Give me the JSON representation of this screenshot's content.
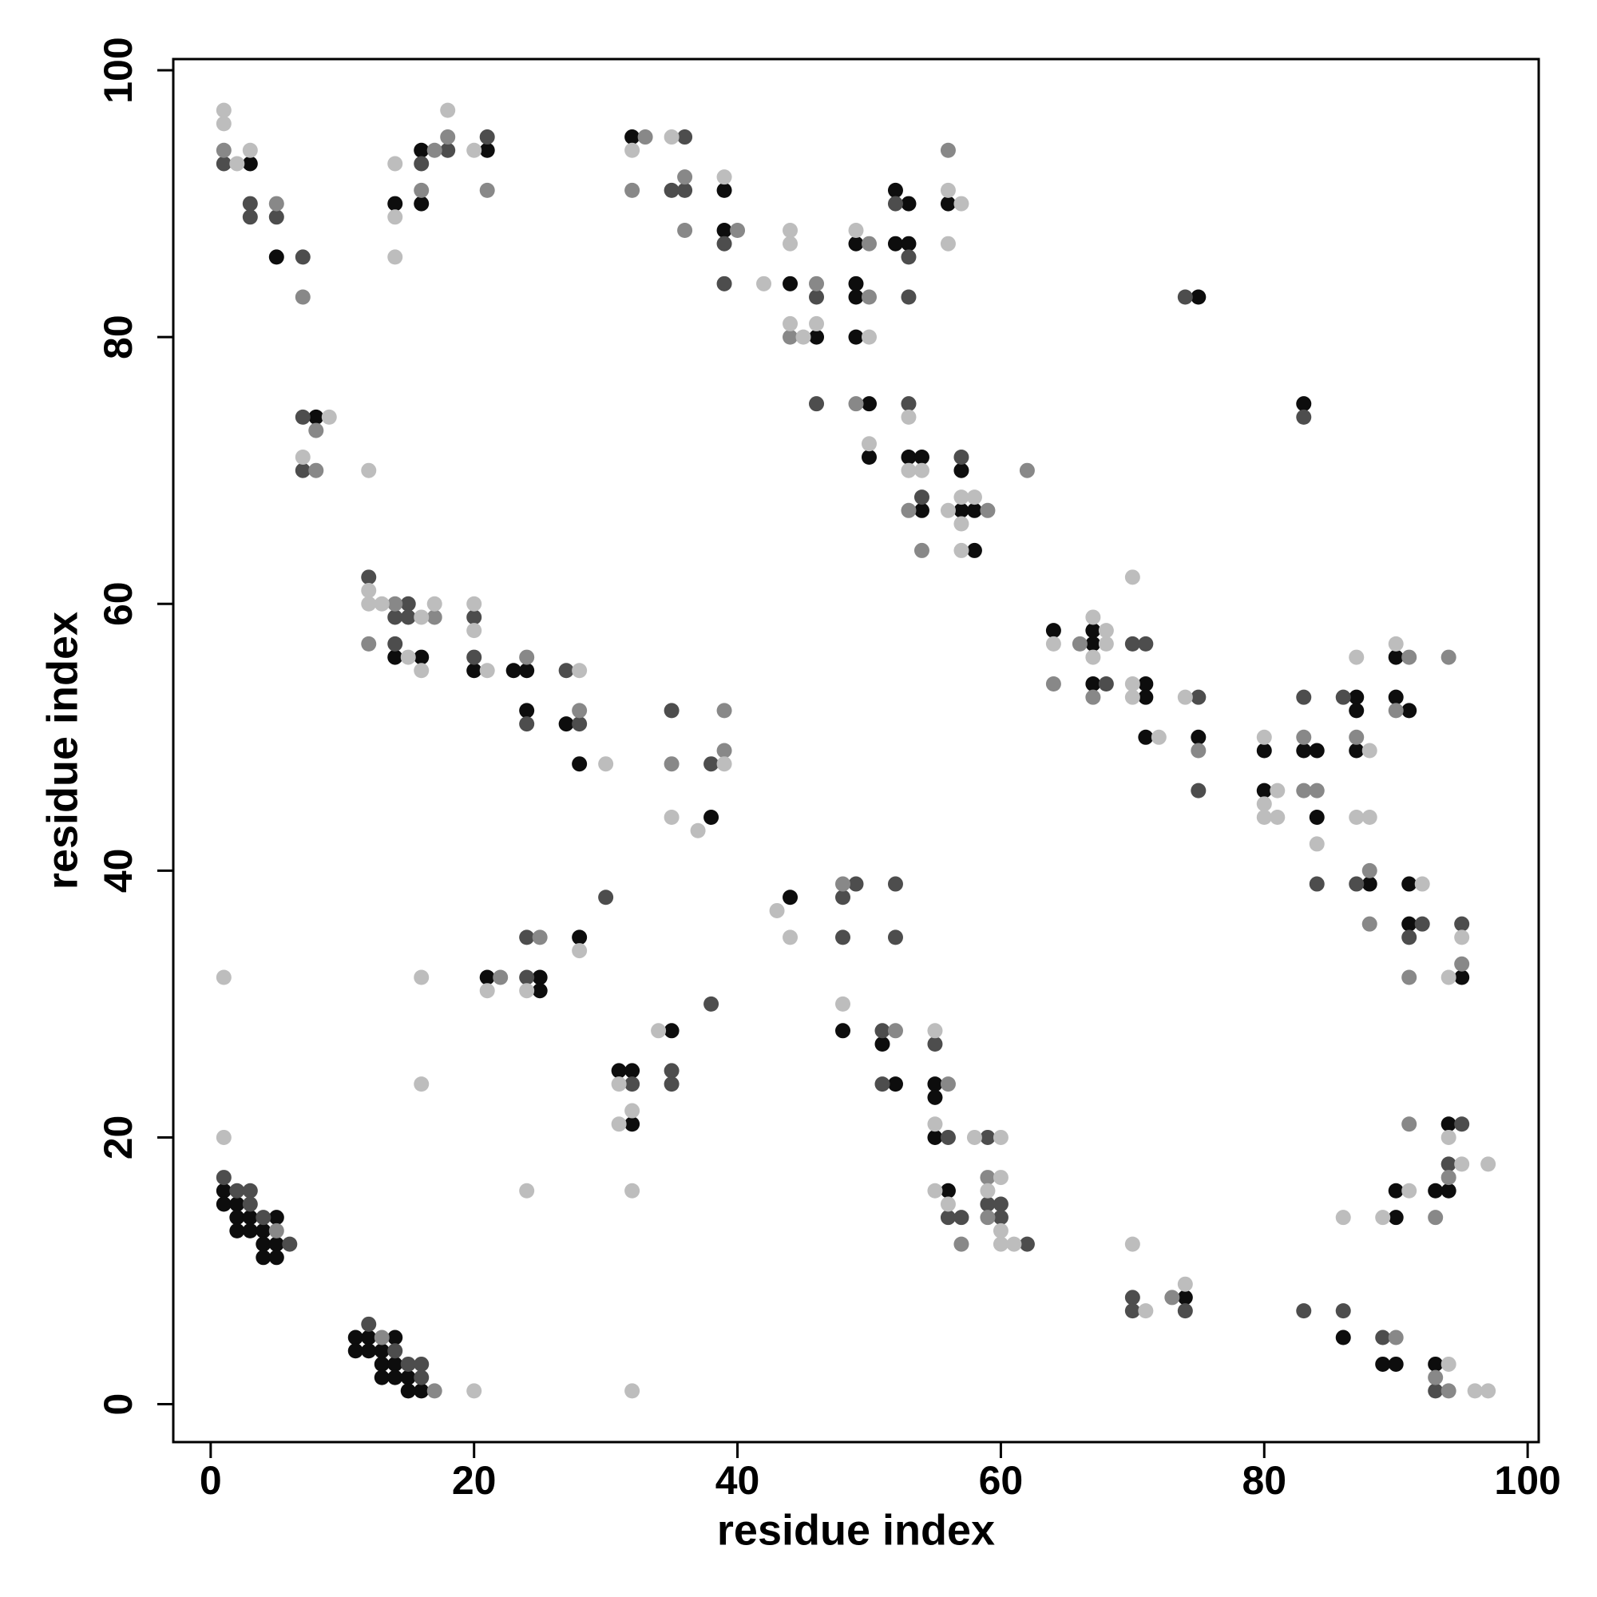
{
  "chart_data": {
    "type": "scatter",
    "xlabel": "residue index",
    "ylabel": "residue index",
    "xlim": [
      -2.84,
      100.84
    ],
    "ylim": [
      -2.84,
      100.84
    ],
    "xticks": [
      0,
      20,
      40,
      60,
      80,
      100
    ],
    "yticks": [
      0,
      20,
      40,
      60,
      80,
      100
    ],
    "series": [
      {
        "color": "#0d0d0d",
        "x": [
          3,
          5,
          8,
          14,
          16,
          16,
          21,
          32,
          39,
          39,
          44,
          46,
          49,
          49,
          49,
          49,
          50,
          50,
          52,
          53,
          52,
          53,
          56,
          53,
          54,
          54,
          57,
          57,
          58,
          58,
          75,
          83,
          14,
          16,
          20,
          23,
          24,
          24,
          27,
          28,
          38,
          64,
          67,
          67,
          67,
          71,
          71,
          71,
          75,
          80,
          80,
          83,
          84,
          84,
          87,
          87,
          87,
          88,
          90,
          90,
          91,
          91,
          91,
          95,
          21,
          25,
          25,
          28,
          35,
          31,
          32,
          32,
          44,
          48,
          51,
          52,
          55,
          55,
          55,
          56,
          74,
          86,
          90,
          90,
          89,
          90,
          93,
          94,
          94,
          93,
          1,
          1,
          2,
          2,
          2,
          3,
          3,
          4,
          4,
          4,
          5,
          5,
          5,
          11,
          11,
          12,
          12,
          13,
          13,
          13,
          14,
          14,
          14,
          15,
          15,
          16
        ],
        "values": [
          93,
          86,
          74,
          90,
          94,
          90,
          94,
          95,
          91,
          88,
          84,
          80,
          87,
          84,
          83,
          80,
          75,
          71,
          91,
          90,
          87,
          87,
          90,
          71,
          71,
          67,
          70,
          67,
          67,
          64,
          83,
          75,
          56,
          56,
          55,
          55,
          55,
          52,
          51,
          48,
          44,
          58,
          58,
          57,
          54,
          54,
          53,
          50,
          50,
          49,
          46,
          49,
          49,
          44,
          53,
          52,
          49,
          39,
          56,
          53,
          52,
          39,
          36,
          32,
          32,
          32,
          31,
          35,
          28,
          25,
          25,
          21,
          38,
          28,
          27,
          24,
          24,
          23,
          20,
          16,
          8,
          5,
          14,
          16,
          3,
          3,
          16,
          16,
          21,
          3,
          16,
          15,
          15,
          14,
          13,
          14,
          13,
          13,
          12,
          11,
          14,
          12,
          11,
          5,
          4,
          5,
          4,
          4,
          3,
          2,
          5,
          3,
          2,
          2,
          1,
          1
        ]
      },
      {
        "color": "#4d4d4d",
        "x": [
          1,
          3,
          3,
          5,
          7,
          7,
          7,
          16,
          18,
          21,
          36,
          35,
          36,
          39,
          39,
          46,
          46,
          52,
          53,
          53,
          53,
          54,
          57,
          74,
          83,
          12,
          15,
          14,
          15,
          14,
          20,
          20,
          24,
          27,
          28,
          35,
          38,
          68,
          70,
          71,
          75,
          75,
          83,
          84,
          86,
          87,
          92,
          91,
          95,
          24,
          24,
          30,
          38,
          32,
          35,
          35,
          49,
          48,
          48,
          52,
          52,
          51,
          51,
          55,
          56,
          59,
          56,
          57,
          59,
          60,
          60,
          62,
          70,
          70,
          74,
          83,
          86,
          89,
          95,
          94,
          93,
          1,
          2,
          3,
          3,
          4,
          6,
          12,
          14,
          15,
          16,
          16
        ],
        "values": [
          93,
          90,
          89,
          89,
          86,
          74,
          70,
          93,
          94,
          95,
          95,
          91,
          91,
          87,
          84,
          83,
          75,
          90,
          86,
          83,
          75,
          68,
          71,
          83,
          74,
          62,
          60,
          59,
          59,
          57,
          59,
          56,
          51,
          55,
          51,
          52,
          48,
          54,
          57,
          57,
          53,
          46,
          53,
          39,
          53,
          39,
          36,
          35,
          36,
          35,
          32,
          38,
          30,
          24,
          25,
          24,
          39,
          38,
          35,
          39,
          35,
          28,
          24,
          27,
          20,
          20,
          14,
          14,
          15,
          15,
          14,
          12,
          8,
          7,
          7,
          7,
          7,
          5,
          21,
          18,
          1,
          17,
          16,
          16,
          15,
          14,
          12,
          6,
          4,
          3,
          3,
          2
        ]
      },
      {
        "color": "#888888",
        "x": [
          1,
          5,
          7,
          8,
          8,
          16,
          17,
          18,
          21,
          33,
          32,
          36,
          36,
          40,
          46,
          44,
          50,
          50,
          49,
          56,
          53,
          59,
          54,
          62,
          14,
          17,
          12,
          24,
          28,
          35,
          39,
          39,
          64,
          66,
          67,
          75,
          83,
          83,
          84,
          87,
          88,
          88,
          91,
          90,
          94,
          91,
          95,
          22,
          25,
          48,
          52,
          56,
          57,
          59,
          59,
          73,
          91,
          90,
          93,
          94,
          93,
          94,
          5,
          13,
          17
        ],
        "values": [
          94,
          90,
          83,
          73,
          70,
          91,
          94,
          95,
          91,
          95,
          91,
          92,
          88,
          88,
          84,
          80,
          87,
          83,
          75,
          94,
          67,
          67,
          64,
          70,
          60,
          59,
          57,
          56,
          52,
          48,
          49,
          52,
          54,
          57,
          53,
          49,
          50,
          46,
          46,
          50,
          40,
          36,
          56,
          52,
          56,
          32,
          33,
          32,
          35,
          39,
          28,
          24,
          12,
          17,
          14,
          8,
          21,
          5,
          14,
          17,
          2,
          1,
          13,
          5,
          1
        ]
      },
      {
        "color": "#bdbdbd",
        "x": [
          1,
          1,
          2,
          3,
          9,
          7,
          12,
          14,
          14,
          14,
          18,
          20,
          32,
          35,
          39,
          42,
          44,
          44,
          44,
          45,
          46,
          49,
          50,
          50,
          56,
          57,
          56,
          53,
          53,
          54,
          57,
          58,
          56,
          57,
          57,
          12,
          12,
          13,
          16,
          17,
          15,
          16,
          20,
          20,
          21,
          28,
          30,
          39,
          35,
          37,
          64,
          67,
          68,
          68,
          67,
          70,
          70,
          70,
          72,
          74,
          80,
          81,
          80,
          80,
          81,
          84,
          87,
          88,
          87,
          88,
          90,
          92,
          94,
          95,
          1,
          16,
          16,
          21,
          24,
          28,
          34,
          31,
          32,
          31,
          32,
          24,
          43,
          44,
          48,
          55,
          55,
          58,
          60,
          55,
          56,
          60,
          59,
          60,
          60,
          61,
          70,
          71,
          74,
          86,
          89,
          91,
          94,
          95,
          97,
          94,
          96,
          97,
          1,
          20,
          32
        ],
        "values": [
          97,
          96,
          93,
          94,
          74,
          71,
          70,
          93,
          89,
          86,
          97,
          94,
          94,
          95,
          92,
          84,
          88,
          87,
          81,
          80,
          81,
          88,
          80,
          72,
          91,
          90,
          87,
          74,
          70,
          70,
          68,
          68,
          67,
          66,
          64,
          61,
          60,
          60,
          59,
          60,
          56,
          55,
          60,
          58,
          55,
          55,
          48,
          48,
          44,
          43,
          57,
          59,
          58,
          57,
          56,
          62,
          54,
          53,
          50,
          53,
          50,
          46,
          45,
          44,
          44,
          42,
          56,
          49,
          44,
          44,
          57,
          39,
          32,
          35,
          32,
          32,
          24,
          31,
          31,
          34,
          28,
          24,
          22,
          21,
          16,
          16,
          37,
          35,
          30,
          28,
          21,
          20,
          20,
          16,
          15,
          17,
          16,
          13,
          12,
          12,
          12,
          7,
          9,
          14,
          14,
          16,
          20,
          18,
          18,
          3,
          1,
          1,
          20,
          1,
          1
        ]
      }
    ]
  }
}
